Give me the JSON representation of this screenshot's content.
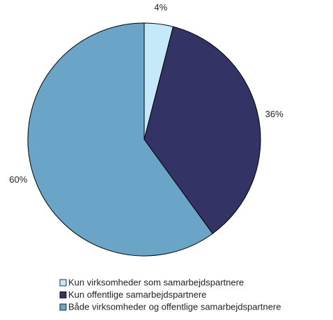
{
  "chart_data": {
    "type": "pie",
    "categories": [
      "Kun virksomheder som samarbejdspartnere",
      "Kun offentlige samarbejdspartnere",
      "Både virksomheder og offentlige samarbejdspartnere"
    ],
    "values": [
      4,
      36,
      60
    ],
    "value_labels": [
      "4%",
      "36%",
      "60%"
    ],
    "colors": [
      "#c6e9f9",
      "#333366",
      "#6aa5c8"
    ]
  }
}
